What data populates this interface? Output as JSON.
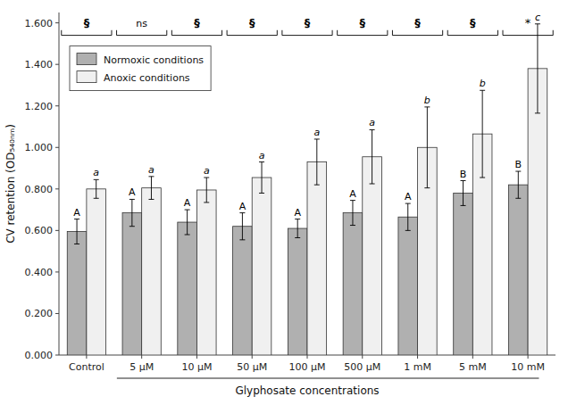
{
  "chart_data": {
    "type": "bar",
    "xlabel": "Glyphosate concentrations",
    "ylabel": "CV retention (OD₅₄₀ₙₘ)",
    "categories": [
      "Control",
      "5 μM",
      "10 μM",
      "50 μM",
      "100 μM",
      "500 μM",
      "1 mM",
      "5 mM",
      "10 mM"
    ],
    "series": [
      {
        "name": "Normoxic conditions",
        "color": "#b0b0b0",
        "values": [
          0.595,
          0.685,
          0.64,
          0.62,
          0.61,
          0.685,
          0.665,
          0.78,
          0.82
        ],
        "errors": [
          0.06,
          0.065,
          0.06,
          0.065,
          0.045,
          0.06,
          0.065,
          0.06,
          0.065
        ],
        "letter_labels": [
          "A",
          "A",
          "A",
          "A",
          "A",
          "A",
          "A",
          "B",
          "B"
        ]
      },
      {
        "name": "Anoxic conditions",
        "color": "#f0f0f0",
        "values": [
          0.8,
          0.805,
          0.795,
          0.855,
          0.93,
          0.955,
          1.0,
          1.065,
          1.38
        ],
        "errors": [
          0.045,
          0.055,
          0.06,
          0.075,
          0.11,
          0.13,
          0.195,
          0.21,
          0.215
        ],
        "letter_labels": [
          "a",
          "a",
          "a",
          "a",
          "a",
          "a",
          "b",
          "b",
          "c"
        ]
      }
    ],
    "significance_labels": [
      "§",
      "ns",
      "§",
      "§",
      "§",
      "§",
      "§",
      "§",
      "*"
    ],
    "bracket_y": 1.54,
    "bracket_height": 0.025,
    "sig_y": 1.575,
    "ylim": [
      0.0,
      1.65
    ],
    "yticks": [
      {
        "value": 0.0,
        "label": "0.000"
      },
      {
        "value": 0.2,
        "label": "0.200"
      },
      {
        "value": 0.4,
        "label": "0.400"
      },
      {
        "value": 0.6,
        "label": "0.600"
      },
      {
        "value": 0.8,
        "label": "0.800"
      },
      {
        "value": 1.0,
        "label": "1.000"
      },
      {
        "value": 1.2,
        "label": "1.200"
      },
      {
        "value": 1.4,
        "label": "1.400"
      },
      {
        "value": 1.6,
        "label": "1.600"
      }
    ],
    "grid": false,
    "legend": "upper left"
  }
}
